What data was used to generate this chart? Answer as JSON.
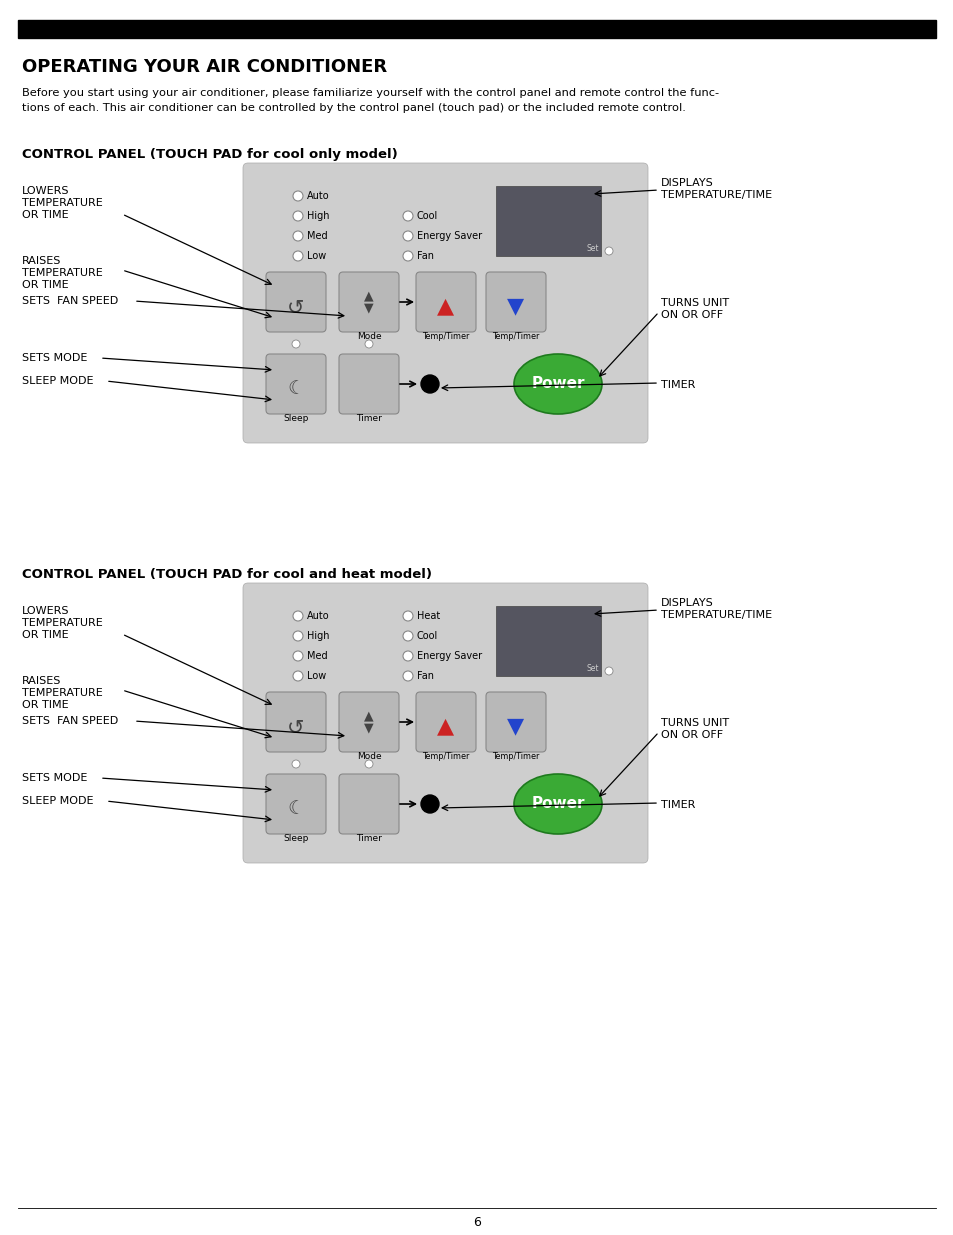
{
  "title": "OPERATING YOUR AIR CONDITIONER",
  "header_bar_color": "#000000",
  "body_line1": "Before you start using your air conditioner, please familiarize yourself with the control panel and remote control the func-",
  "body_line2": "tions of each. This air conditioner can be controlled by the control panel (touch pad) or the included remote control.",
  "panel1_title": "CONTROL PANEL (TOUCH PAD for cool only model)",
  "panel2_title": "CONTROL PANEL (TOUCH PAD for cool and heat model)",
  "panel_bg": "#cecece",
  "button_bg": "#b8b8b8",
  "display_bg": "#555560",
  "power_color": "#3aaa35",
  "page_number": "6"
}
